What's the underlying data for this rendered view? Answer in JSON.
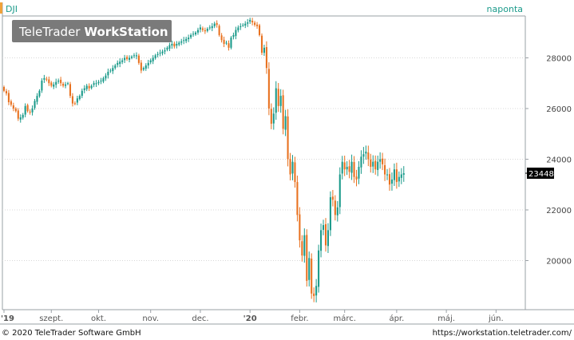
{
  "header": {
    "symbol": "DJI",
    "watermark_prefix": "TeleTrader",
    "watermark_strong": "WorkStation",
    "interval": "naponta"
  },
  "footer": {
    "copyright": "© 2020 TeleTrader Software GmbH",
    "url": "https://workstation.teletrader.com/"
  },
  "colors": {
    "up": "#1a9a8a",
    "down": "#e8711f",
    "accent": "#f0a23a",
    "header_text": "#1a9a8a",
    "watermark_bg": "#6b6b6b",
    "current_label_bg": "#000000"
  },
  "chart_data": {
    "type": "candlestick",
    "title": "DJI",
    "interval": "naponta",
    "y_ticks": [
      20000,
      22000,
      24000,
      26000,
      28000
    ],
    "y_tick_labels": [
      "20000",
      "22000",
      "24000",
      "26000",
      "28000"
    ],
    "ylim": [
      18200,
      29550
    ],
    "x_ticks": [
      {
        "label": "'19",
        "bold": true
      },
      {
        "label": "szept.",
        "bold": false
      },
      {
        "label": "okt.",
        "bold": false
      },
      {
        "label": "nov.",
        "bold": false
      },
      {
        "label": "dec.",
        "bold": false
      },
      {
        "label": "'20",
        "bold": true
      },
      {
        "label": "febr.",
        "bold": false
      },
      {
        "label": "márc.",
        "bold": false
      },
      {
        "label": "ápr.",
        "bold": false
      },
      {
        "label": "máj.",
        "bold": false
      },
      {
        "label": "jún.",
        "bold": false
      }
    ],
    "x_tick_days": [
      0,
      20,
      40,
      62,
      83,
      104,
      125,
      144,
      166,
      187,
      208
    ],
    "total_days": 218,
    "current_value": 23448,
    "current_label": "23448",
    "series": [
      {
        "name": "DJI",
        "closes": [
          26700,
          26600,
          26250,
          26150,
          26000,
          25900,
          25600,
          25650,
          25750,
          26100,
          25900,
          25850,
          26000,
          26300,
          26500,
          26700,
          27100,
          27200,
          27150,
          27000,
          26900,
          26950,
          27050,
          27100,
          27000,
          26900,
          26950,
          27000,
          26500,
          26200,
          26200,
          26400,
          26500,
          26700,
          26800,
          26900,
          26800,
          26900,
          27000,
          27000,
          27050,
          27100,
          27200,
          27300,
          27450,
          27500,
          27600,
          27700,
          27800,
          27850,
          27900,
          28000,
          27950,
          28000,
          28050,
          28100,
          28100,
          27800,
          27500,
          27600,
          27700,
          27800,
          27900,
          28000,
          28100,
          28150,
          28200,
          28250,
          28300,
          28400,
          28500,
          28550,
          28450,
          28550,
          28600,
          28650,
          28700,
          28750,
          28800,
          28900,
          28950,
          29000,
          29100,
          29200,
          29100,
          29050,
          29150,
          29200,
          29250,
          29350,
          29300,
          28900,
          28700,
          28550,
          28600,
          28400,
          28800,
          28900,
          29100,
          29200,
          29250,
          29300,
          29350,
          29400,
          29500,
          29400,
          29300,
          29250,
          28900,
          28200,
          28400,
          27600,
          26000,
          25400,
          25800,
          26800,
          26100,
          26500,
          25200,
          25700,
          24000,
          23400,
          23900,
          23100,
          21800,
          20800,
          20200,
          21000,
          19200,
          20100,
          18700,
          18600,
          19000,
          20400,
          21200,
          21400,
          20600,
          21200,
          22500,
          22400,
          21800,
          22100,
          23400,
          23900,
          23600,
          23700,
          23500,
          23900,
          23300,
          23200,
          23700,
          24100,
          24200,
          24300,
          24000,
          23700,
          23900,
          23600,
          23900,
          24000,
          23800,
          23400,
          23400,
          23000,
          23200,
          23600,
          23100,
          23300,
          23400,
          23448
        ]
      }
    ]
  }
}
